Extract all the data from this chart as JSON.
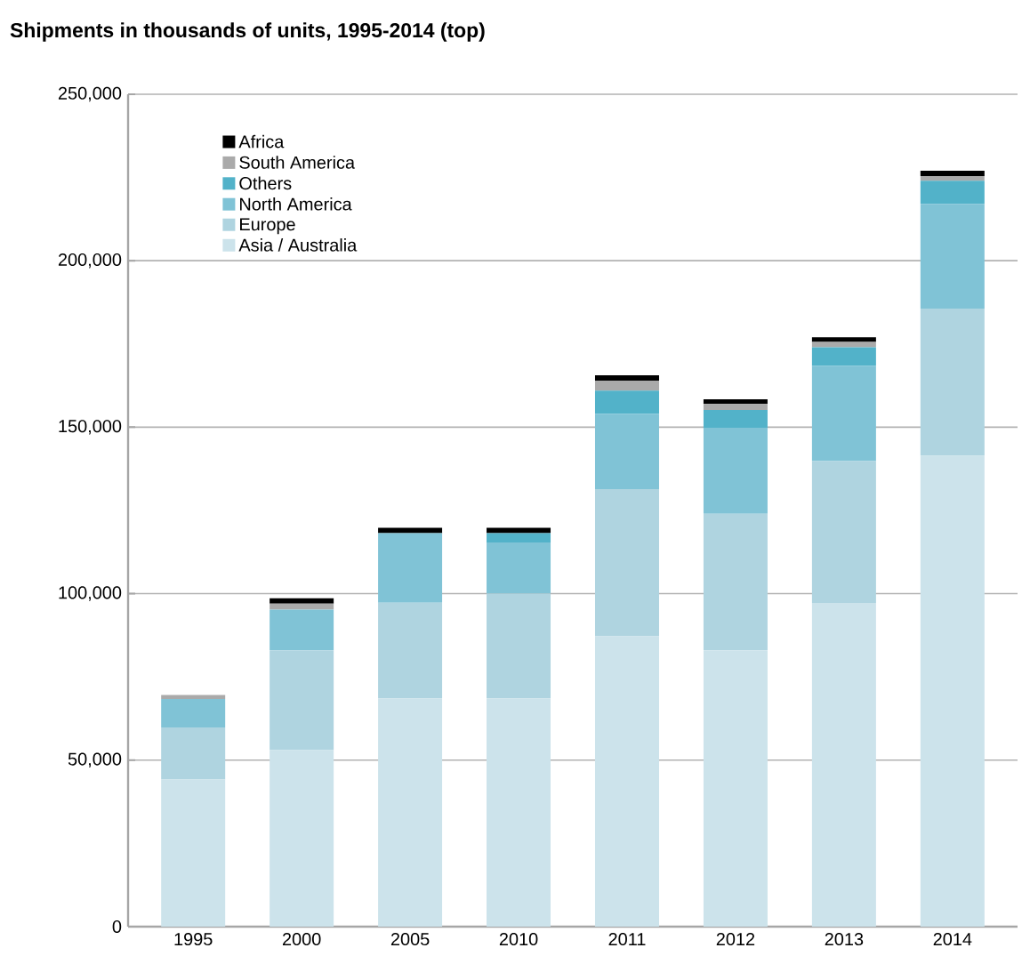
{
  "chart_data": {
    "type": "bar",
    "title": "Shipments in thousands of units, 1995-2014 (top)",
    "categories": [
      "1995",
      "2000",
      "2005",
      "2010",
      "2011",
      "2012",
      "2013",
      "2014"
    ],
    "stacked": true,
    "grid": "y",
    "legend": "top left",
    "ylim": [
      0,
      250000
    ],
    "yticks": [
      {
        "value": 0,
        "label": "0"
      },
      {
        "value": 50000,
        "label": "50,000"
      },
      {
        "value": 100000,
        "label": "100,000"
      },
      {
        "value": 150000,
        "label": "150,000"
      },
      {
        "value": 200000,
        "label": "200,000"
      },
      {
        "value": 250000,
        "label": "250,000"
      }
    ],
    "series": [
      {
        "name": "Asia / Australia",
        "color": "#cce3eb",
        "values": [
          44200,
          53000,
          68600,
          68600,
          87200,
          83000,
          97200,
          141400
        ]
      },
      {
        "name": "Europe",
        "color": "#afd4e0",
        "values": [
          15600,
          30000,
          28700,
          31400,
          44200,
          41000,
          42600,
          44200
        ]
      },
      {
        "name": "North America",
        "color": "#80c3d6",
        "values": [
          8600,
          12200,
          20900,
          15400,
          22600,
          25800,
          28600,
          31500
        ]
      },
      {
        "name": "Others",
        "color": "#52b2c9",
        "values": [
          0,
          0,
          0,
          2800,
          7000,
          5400,
          5600,
          6900
        ]
      },
      {
        "name": "South America",
        "color": "#aaaaaa",
        "values": [
          1200,
          1800,
          0,
          0,
          3000,
          1800,
          1600,
          1400
        ]
      },
      {
        "name": "Africa",
        "color": "#000000",
        "values": [
          0,
          1600,
          1600,
          1600,
          1600,
          1400,
          1400,
          1600
        ]
      }
    ]
  }
}
